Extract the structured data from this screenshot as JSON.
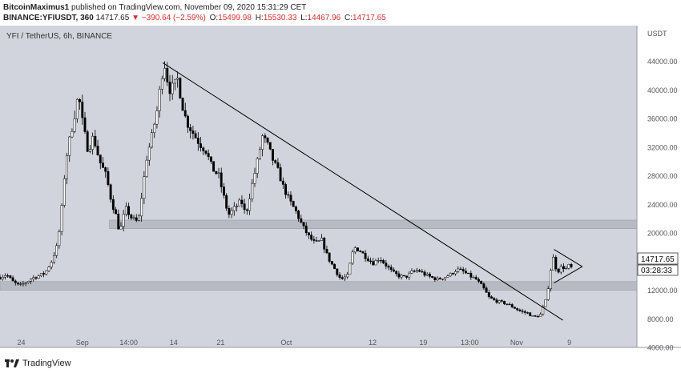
{
  "header": {
    "author": "BitcoinMaximus1",
    "published_text": "published on TradingView.com, November 09, 2020 15:31:29 CET",
    "symbol": "BINANCE:YFIUSDT, 360",
    "last_price": "14717.65",
    "change": "−390.64 (−2.59%)",
    "o_label": "O:",
    "o_value": "15499.98",
    "h_label": "H:",
    "h_value": "15530.33",
    "l_label": "L:",
    "l_value": "14467.96",
    "c_label": "C:",
    "c_value": "14717.65"
  },
  "footer": {
    "brand": "TradingView"
  },
  "colors": {
    "pane_bg": "#d1d4dc",
    "candle": "#000000",
    "zone_fill": "#b2b5be",
    "axis_text": "#555555"
  },
  "chart_data": {
    "type": "candlestick",
    "title": "YFI / TetherUS, 6h, BINANCE",
    "y_unit_label": "USDT",
    "ylim": [
      4000,
      49000
    ],
    "y_ticks": [
      4000,
      8000,
      12000,
      16000,
      20000,
      24000,
      28000,
      32000,
      36000,
      40000,
      44000
    ],
    "y_tick_labels": [
      "4000.00",
      "8000.00",
      "12000.00",
      "16000.00",
      "20000.00",
      "24000.00",
      "28000.00",
      "32000.00",
      "36000.00",
      "40000.00",
      "44000.00"
    ],
    "x_tick_labels": [
      {
        "label": "24",
        "x": 3.3
      },
      {
        "label": "Sep",
        "x": 12.8
      },
      {
        "label": "14:00",
        "x": 20
      },
      {
        "label": "14",
        "x": 27
      },
      {
        "label": "21",
        "x": 34.3
      },
      {
        "label": "Oct",
        "x": 44.5
      },
      {
        "label": "12",
        "x": 57.9
      },
      {
        "label": "19",
        "x": 65.8
      },
      {
        "label": "13:00",
        "x": 73
      },
      {
        "label": "Nov",
        "x": 80.3
      },
      {
        "label": "9",
        "x": 88.5
      }
    ],
    "x_range": [
      0,
      99
    ],
    "price_label": "14717.65",
    "countdown_label": "03:28:33",
    "price_path": [
      [
        0,
        13800
      ],
      [
        1,
        14200
      ],
      [
        2,
        13200
      ],
      [
        3,
        12600
      ],
      [
        4,
        13100
      ],
      [
        5,
        13700
      ],
      [
        6,
        14000
      ],
      [
        7,
        14400
      ],
      [
        8,
        16000
      ],
      [
        9,
        18500
      ],
      [
        9.6,
        23500
      ],
      [
        10.2,
        30000
      ],
      [
        10.8,
        33000
      ],
      [
        11.5,
        36000
      ],
      [
        12.2,
        39500
      ],
      [
        12.9,
        35000
      ],
      [
        13.7,
        31500
      ],
      [
        14.5,
        33500
      ],
      [
        15.5,
        30000
      ],
      [
        16.5,
        28000
      ],
      [
        17.3,
        24500
      ],
      [
        18,
        22500
      ],
      [
        18.6,
        20000
      ],
      [
        19.5,
        23500
      ],
      [
        20.5,
        22000
      ],
      [
        21.5,
        21500
      ],
      [
        22,
        25000
      ],
      [
        22.8,
        30500
      ],
      [
        23.6,
        33500
      ],
      [
        24.5,
        37500
      ],
      [
        25.1,
        42000
      ],
      [
        25.6,
        43500
      ],
      [
        26.3,
        40000
      ],
      [
        27,
        40500
      ],
      [
        27.6,
        41500
      ],
      [
        28.3,
        38000
      ],
      [
        29,
        35500
      ],
      [
        30,
        34000
      ],
      [
        31,
        32500
      ],
      [
        32,
        31500
      ],
      [
        33,
        29000
      ],
      [
        34,
        28000
      ],
      [
        34.8,
        25000
      ],
      [
        35.5,
        22500
      ],
      [
        36.5,
        23500
      ],
      [
        37.5,
        24500
      ],
      [
        38.2,
        22500
      ],
      [
        39,
        26000
      ],
      [
        40,
        30000
      ],
      [
        40.8,
        33500
      ],
      [
        41.5,
        32500
      ],
      [
        42.5,
        30000
      ],
      [
        43.3,
        28500
      ],
      [
        44,
        26500
      ],
      [
        45,
        24500
      ],
      [
        46,
        23000
      ],
      [
        47,
        21000
      ],
      [
        48,
        19500
      ],
      [
        49,
        18500
      ],
      [
        50,
        19000
      ],
      [
        51,
        16500
      ],
      [
        52,
        15000
      ],
      [
        53,
        13500
      ],
      [
        54,
        14000
      ],
      [
        55,
        18000
      ],
      [
        56,
        17500
      ],
      [
        57,
        16500
      ],
      [
        58,
        15800
      ],
      [
        59,
        16500
      ],
      [
        60,
        15500
      ],
      [
        61,
        14500
      ],
      [
        62,
        14000
      ],
      [
        63,
        13800
      ],
      [
        64,
        14500
      ],
      [
        65,
        14800
      ],
      [
        66,
        14200
      ],
      [
        67,
        13800
      ],
      [
        68,
        13500
      ],
      [
        69,
        13800
      ],
      [
        70,
        14200
      ],
      [
        71,
        14900
      ],
      [
        72,
        14600
      ],
      [
        73,
        14000
      ],
      [
        74,
        13500
      ],
      [
        75,
        12500
      ],
      [
        76,
        11000
      ],
      [
        77,
        10500
      ],
      [
        78,
        10300
      ],
      [
        79,
        10000
      ],
      [
        80,
        9500
      ],
      [
        81,
        9000
      ],
      [
        82,
        8800
      ],
      [
        83,
        8200
      ],
      [
        84,
        8600
      ],
      [
        85,
        11000
      ],
      [
        85.5,
        14500
      ],
      [
        86,
        16500
      ],
      [
        86.6,
        14500
      ],
      [
        87.3,
        15300
      ],
      [
        88,
        15000
      ],
      [
        88.6,
        15600
      ],
      [
        89,
        14717
      ]
    ],
    "trendline": {
      "from": [
        25.3,
        43800
      ],
      "to": [
        87.5,
        7800
      ]
    },
    "triangle": {
      "upper_start": [
        86.1,
        17700
      ],
      "lower_start": [
        86.1,
        13000
      ],
      "apex": [
        90.5,
        15300
      ]
    },
    "support_zones": [
      {
        "y1": 20600,
        "y2": 21800,
        "x1": 17.0,
        "x2": 99
      },
      {
        "y1": 12000,
        "y2": 13200,
        "x1": 0,
        "x2": 99
      }
    ]
  }
}
